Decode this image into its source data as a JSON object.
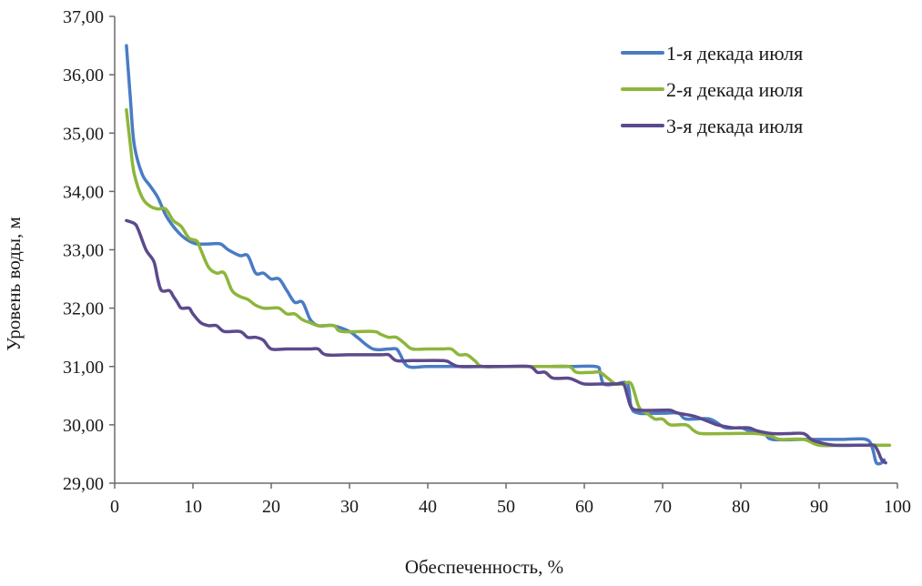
{
  "chart_data": {
    "type": "line",
    "title": "",
    "xlabel": "Обеспеченность, %",
    "ylabel": "Уровень воды, м",
    "xlim": [
      0,
      100
    ],
    "ylim": [
      29,
      37
    ],
    "x_ticks": [
      0,
      10,
      20,
      30,
      40,
      50,
      60,
      70,
      80,
      90,
      100
    ],
    "x_tick_labels": [
      "0",
      "10",
      "20",
      "30",
      "40",
      "50",
      "60",
      "70",
      "80",
      "90",
      "100"
    ],
    "y_ticks": [
      29,
      30,
      31,
      32,
      33,
      34,
      35,
      36,
      37
    ],
    "y_tick_labels": [
      "29,00",
      "30,00",
      "31,00",
      "32,00",
      "33,00",
      "34,00",
      "35,00",
      "36,00",
      "37,00"
    ],
    "grid": false,
    "legend_position": "top-right",
    "series": [
      {
        "name": "1-я декада июля",
        "color": "#4a7cc4",
        "points": [
          [
            1.5,
            36.5
          ],
          [
            2.0,
            35.6
          ],
          [
            2.5,
            34.8
          ],
          [
            3.5,
            34.3
          ],
          [
            4.5,
            34.1
          ],
          [
            5.5,
            33.9
          ],
          [
            6.5,
            33.6
          ],
          [
            7.5,
            33.4
          ],
          [
            8.5,
            33.25
          ],
          [
            9.5,
            33.15
          ],
          [
            10.5,
            33.1
          ],
          [
            12.0,
            33.1
          ],
          [
            13.5,
            33.1
          ],
          [
            14.5,
            33.0
          ],
          [
            16.0,
            32.9
          ],
          [
            17.0,
            32.9
          ],
          [
            18.0,
            32.6
          ],
          [
            19.0,
            32.6
          ],
          [
            20.0,
            32.5
          ],
          [
            21.0,
            32.5
          ],
          [
            22.0,
            32.3
          ],
          [
            23.0,
            32.1
          ],
          [
            24.0,
            32.1
          ],
          [
            25.0,
            31.8
          ],
          [
            26.0,
            31.7
          ],
          [
            27.0,
            31.7
          ],
          [
            28.0,
            31.7
          ],
          [
            30.0,
            31.6
          ],
          [
            31.0,
            31.5
          ],
          [
            33.0,
            31.3
          ],
          [
            35.0,
            31.3
          ],
          [
            36.0,
            31.3
          ],
          [
            36.5,
            31.2
          ],
          [
            37.5,
            31.0
          ],
          [
            40.0,
            31.0
          ],
          [
            45.0,
            31.0
          ],
          [
            50.0,
            31.0
          ],
          [
            55.0,
            31.0
          ],
          [
            58.0,
            31.0
          ],
          [
            61.5,
            31.0
          ],
          [
            62.0,
            30.9
          ],
          [
            62.5,
            30.7
          ],
          [
            64.0,
            30.7
          ],
          [
            65.5,
            30.7
          ],
          [
            66.0,
            30.3
          ],
          [
            67.0,
            30.2
          ],
          [
            70.0,
            30.2
          ],
          [
            72.0,
            30.2
          ],
          [
            73.0,
            30.1
          ],
          [
            76.0,
            30.1
          ],
          [
            78.0,
            29.95
          ],
          [
            80.0,
            29.95
          ],
          [
            81.0,
            29.9
          ],
          [
            83.0,
            29.85
          ],
          [
            84.0,
            29.75
          ],
          [
            88.0,
            29.75
          ],
          [
            90.0,
            29.75
          ],
          [
            93.0,
            29.75
          ],
          [
            96.0,
            29.75
          ],
          [
            96.8,
            29.6
          ],
          [
            97.3,
            29.35
          ],
          [
            98.0,
            29.35
          ],
          [
            98.3,
            29.4
          ]
        ]
      },
      {
        "name": "2-я декада июля",
        "color": "#8db63c",
        "points": [
          [
            1.5,
            35.4
          ],
          [
            2.0,
            34.8
          ],
          [
            2.5,
            34.3
          ],
          [
            3.5,
            33.9
          ],
          [
            4.5,
            33.75
          ],
          [
            5.5,
            33.7
          ],
          [
            6.5,
            33.7
          ],
          [
            7.5,
            33.5
          ],
          [
            8.5,
            33.4
          ],
          [
            9.5,
            33.2
          ],
          [
            10.5,
            33.15
          ],
          [
            11.0,
            33.0
          ],
          [
            12.0,
            32.7
          ],
          [
            13.0,
            32.6
          ],
          [
            14.0,
            32.6
          ],
          [
            15.0,
            32.3
          ],
          [
            16.0,
            32.2
          ],
          [
            17.0,
            32.15
          ],
          [
            18.0,
            32.05
          ],
          [
            19.0,
            32.0
          ],
          [
            20.0,
            32.0
          ],
          [
            21.0,
            32.0
          ],
          [
            22.0,
            31.9
          ],
          [
            23.0,
            31.9
          ],
          [
            24.0,
            31.8
          ],
          [
            25.0,
            31.75
          ],
          [
            26.0,
            31.7
          ],
          [
            28.0,
            31.7
          ],
          [
            29.0,
            31.6
          ],
          [
            33.0,
            31.6
          ],
          [
            34.0,
            31.55
          ],
          [
            35.0,
            31.5
          ],
          [
            36.0,
            31.5
          ],
          [
            37.0,
            31.4
          ],
          [
            38.0,
            31.3
          ],
          [
            40.0,
            31.3
          ],
          [
            42.0,
            31.3
          ],
          [
            43.0,
            31.3
          ],
          [
            44.0,
            31.2
          ],
          [
            45.0,
            31.2
          ],
          [
            46.0,
            31.1
          ],
          [
            47.0,
            31.0
          ],
          [
            50.0,
            31.0
          ],
          [
            55.0,
            31.0
          ],
          [
            58.0,
            31.0
          ],
          [
            59.0,
            30.9
          ],
          [
            61.0,
            30.9
          ],
          [
            62.0,
            30.9
          ],
          [
            63.0,
            30.8
          ],
          [
            64.0,
            30.7
          ],
          [
            65.0,
            30.7
          ],
          [
            66.0,
            30.7
          ],
          [
            67.0,
            30.3
          ],
          [
            68.0,
            30.2
          ],
          [
            69.0,
            30.1
          ],
          [
            70.0,
            30.1
          ],
          [
            71.0,
            30.0
          ],
          [
            73.0,
            30.0
          ],
          [
            74.0,
            29.9
          ],
          [
            75.0,
            29.85
          ],
          [
            78.0,
            29.85
          ],
          [
            82.0,
            29.85
          ],
          [
            84.0,
            29.8
          ],
          [
            85.0,
            29.75
          ],
          [
            88.0,
            29.75
          ],
          [
            90.0,
            29.65
          ],
          [
            93.0,
            29.65
          ],
          [
            96.0,
            29.65
          ],
          [
            99.0,
            29.65
          ]
        ]
      },
      {
        "name": "3-я декада июля",
        "color": "#5c4a8c",
        "points": [
          [
            1.5,
            33.5
          ],
          [
            2.5,
            33.45
          ],
          [
            3.0,
            33.35
          ],
          [
            4.0,
            33.0
          ],
          [
            5.0,
            32.8
          ],
          [
            5.5,
            32.5
          ],
          [
            6.0,
            32.3
          ],
          [
            7.0,
            32.3
          ],
          [
            7.5,
            32.2
          ],
          [
            8.0,
            32.1
          ],
          [
            8.5,
            32.0
          ],
          [
            9.5,
            32.0
          ],
          [
            10.0,
            31.9
          ],
          [
            11.0,
            31.75
          ],
          [
            12.0,
            31.7
          ],
          [
            13.0,
            31.7
          ],
          [
            14.0,
            31.6
          ],
          [
            16.0,
            31.6
          ],
          [
            17.0,
            31.5
          ],
          [
            18.0,
            31.5
          ],
          [
            19.0,
            31.45
          ],
          [
            20.0,
            31.3
          ],
          [
            22.0,
            31.3
          ],
          [
            25.0,
            31.3
          ],
          [
            26.0,
            31.3
          ],
          [
            27.0,
            31.2
          ],
          [
            30.0,
            31.2
          ],
          [
            34.0,
            31.2
          ],
          [
            35.0,
            31.2
          ],
          [
            36.0,
            31.1
          ],
          [
            38.0,
            31.1
          ],
          [
            42.0,
            31.1
          ],
          [
            43.0,
            31.05
          ],
          [
            44.0,
            31.0
          ],
          [
            47.0,
            31.0
          ],
          [
            50.0,
            31.0
          ],
          [
            53.0,
            31.0
          ],
          [
            54.0,
            30.9
          ],
          [
            55.0,
            30.9
          ],
          [
            56.0,
            30.8
          ],
          [
            58.0,
            30.8
          ],
          [
            59.0,
            30.75
          ],
          [
            60.0,
            30.7
          ],
          [
            62.0,
            30.7
          ],
          [
            64.0,
            30.7
          ],
          [
            65.0,
            30.7
          ],
          [
            65.5,
            30.5
          ],
          [
            66.0,
            30.3
          ],
          [
            67.0,
            30.25
          ],
          [
            70.0,
            30.25
          ],
          [
            71.0,
            30.25
          ],
          [
            72.0,
            30.2
          ],
          [
            74.0,
            30.15
          ],
          [
            76.0,
            30.05
          ],
          [
            77.0,
            30.0
          ],
          [
            79.0,
            29.95
          ],
          [
            81.0,
            29.95
          ],
          [
            82.0,
            29.9
          ],
          [
            84.0,
            29.85
          ],
          [
            86.0,
            29.85
          ],
          [
            88.0,
            29.85
          ],
          [
            89.0,
            29.75
          ],
          [
            90.0,
            29.7
          ],
          [
            92.0,
            29.65
          ],
          [
            95.0,
            29.65
          ],
          [
            96.0,
            29.65
          ],
          [
            97.0,
            29.65
          ],
          [
            97.5,
            29.55
          ],
          [
            98.0,
            29.4
          ],
          [
            98.5,
            29.35
          ]
        ]
      }
    ]
  }
}
